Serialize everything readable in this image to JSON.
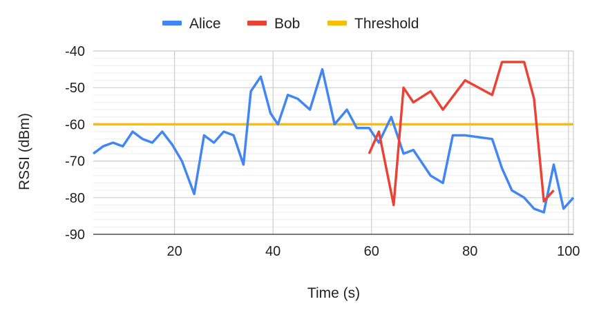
{
  "chart_data": {
    "type": "line",
    "xlabel": "Time (s)",
    "ylabel": "RSSI (dBm)",
    "xlim": [
      3.5,
      101
    ],
    "ylim": [
      -90,
      -40
    ],
    "x_ticks": [
      20,
      40,
      60,
      80,
      100
    ],
    "y_ticks": [
      -90,
      -80,
      -70,
      -60,
      -50,
      -40
    ],
    "x_tick_labels": [
      "20",
      "40",
      "60",
      "80",
      "100"
    ],
    "y_tick_labels": [
      "-90",
      "-80",
      "-70",
      "-60",
      "-50",
      "-40"
    ],
    "grid": true,
    "legend_position": "top",
    "series": [
      {
        "name": "Alice",
        "color": "#4285f4",
        "points": [
          [
            3.5,
            -68
          ],
          [
            5.5,
            -66
          ],
          [
            7.5,
            -65
          ],
          [
            9.5,
            -66
          ],
          [
            11.5,
            -62
          ],
          [
            13.5,
            -64
          ],
          [
            15.5,
            -65
          ],
          [
            17.5,
            -62
          ],
          [
            19.5,
            -65.5
          ],
          [
            21.5,
            -70
          ],
          [
            24,
            -79
          ],
          [
            26,
            -63
          ],
          [
            28,
            -65
          ],
          [
            30,
            -62
          ],
          [
            32,
            -63
          ],
          [
            34,
            -71
          ],
          [
            35.5,
            -51
          ],
          [
            37.5,
            -47
          ],
          [
            39.5,
            -57
          ],
          [
            41,
            -60
          ],
          [
            43,
            -52
          ],
          [
            45,
            -53
          ],
          [
            47.5,
            -56
          ],
          [
            50,
            -45
          ],
          [
            52.5,
            -60
          ],
          [
            55,
            -56
          ],
          [
            57,
            -61
          ],
          [
            59.5,
            -61
          ],
          [
            61.5,
            -65
          ],
          [
            64,
            -58
          ],
          [
            66.5,
            -68
          ],
          [
            68.5,
            -67
          ],
          [
            72,
            -74
          ],
          [
            74.5,
            -76
          ],
          [
            76.5,
            -63
          ],
          [
            79,
            -63
          ],
          [
            84.5,
            -64
          ],
          [
            86.5,
            -72
          ],
          [
            88.5,
            -78
          ],
          [
            91,
            -80
          ],
          [
            93,
            -83
          ],
          [
            95,
            -84
          ],
          [
            97,
            -71
          ],
          [
            99,
            -83
          ],
          [
            101,
            -80
          ]
        ]
      },
      {
        "name": "Bob",
        "color": "#ea4335",
        "points": [
          [
            59.5,
            -68
          ],
          [
            61.5,
            -62
          ],
          [
            64.5,
            -82
          ],
          [
            66.5,
            -50
          ],
          [
            68.5,
            -54
          ],
          [
            72,
            -51
          ],
          [
            74.5,
            -56
          ],
          [
            79,
            -48
          ],
          [
            84.5,
            -52
          ],
          [
            86.5,
            -43
          ],
          [
            91,
            -43
          ],
          [
            93,
            -53
          ],
          [
            95,
            -81
          ],
          [
            97,
            -78
          ]
        ]
      },
      {
        "name": "Threshold",
        "color": "#fbbc04",
        "points": [
          [
            3.5,
            -60
          ],
          [
            101,
            -60
          ]
        ]
      }
    ]
  }
}
